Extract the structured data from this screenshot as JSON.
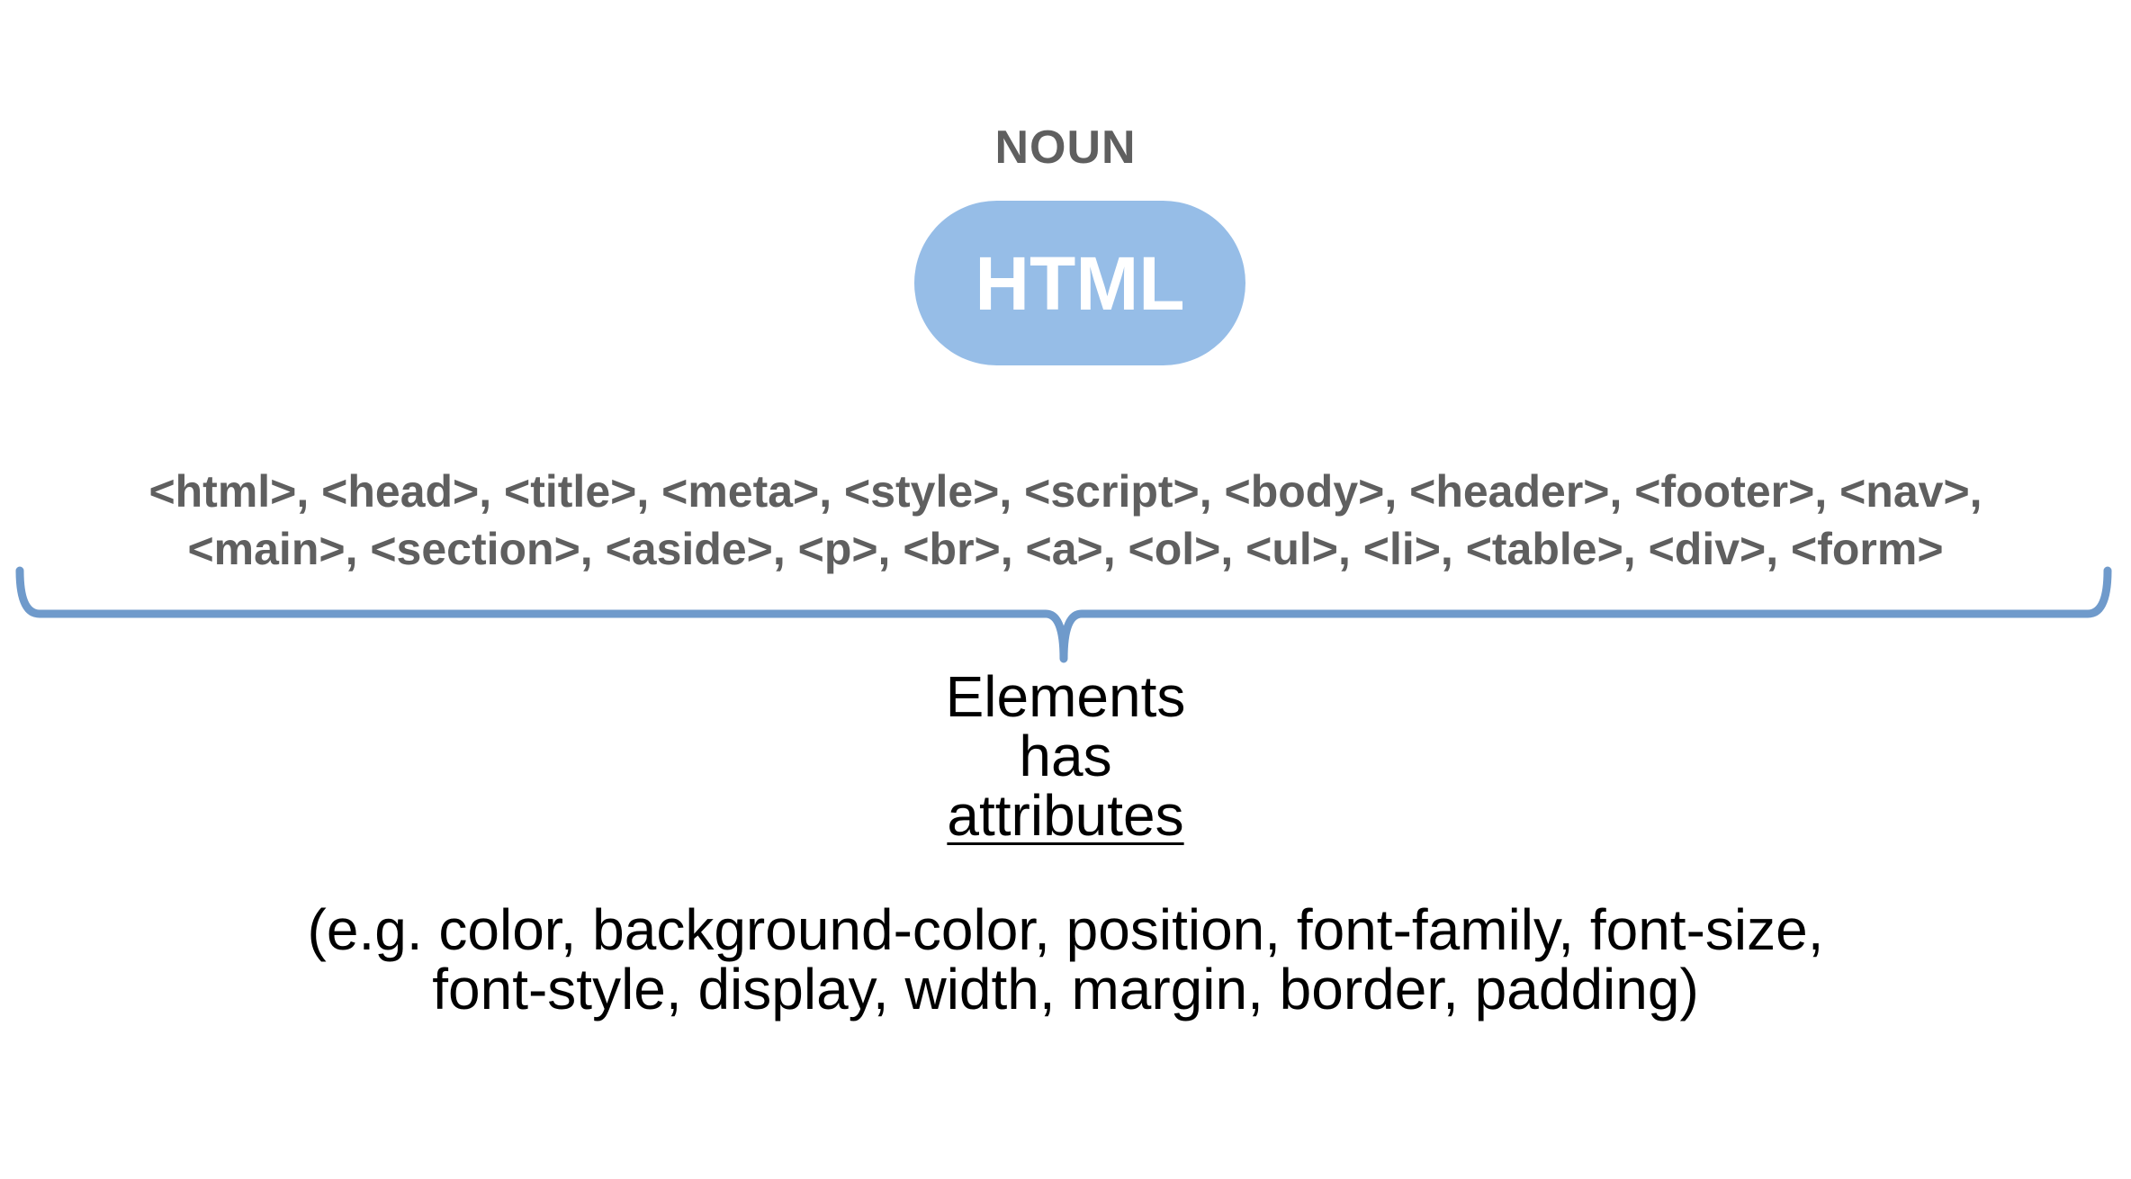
{
  "noun_label": "NOUN",
  "pill_label": "HTML",
  "tags": {
    "line1": "<html>, <head>, <title>, <meta>, <style>, <script>, <body>, <header>, <footer>, <nav>,",
    "line2": "<main>, <section>, <aside>, <p>, <br>, <a>, <ol>, <ul>, <li>, <table>, <div>, <form>"
  },
  "elements": {
    "line1": "Elements",
    "line2": "has",
    "line3": "attributes"
  },
  "examples": {
    "line1": "(e.g. color, background-color, position, font-family, font-size,",
    "line2": "font-style, display, width, margin, border, padding)"
  },
  "colors": {
    "pill_fill": "#96bde7",
    "brace_stroke": "#6f9acb",
    "muted_text": "#5f5f5f"
  }
}
